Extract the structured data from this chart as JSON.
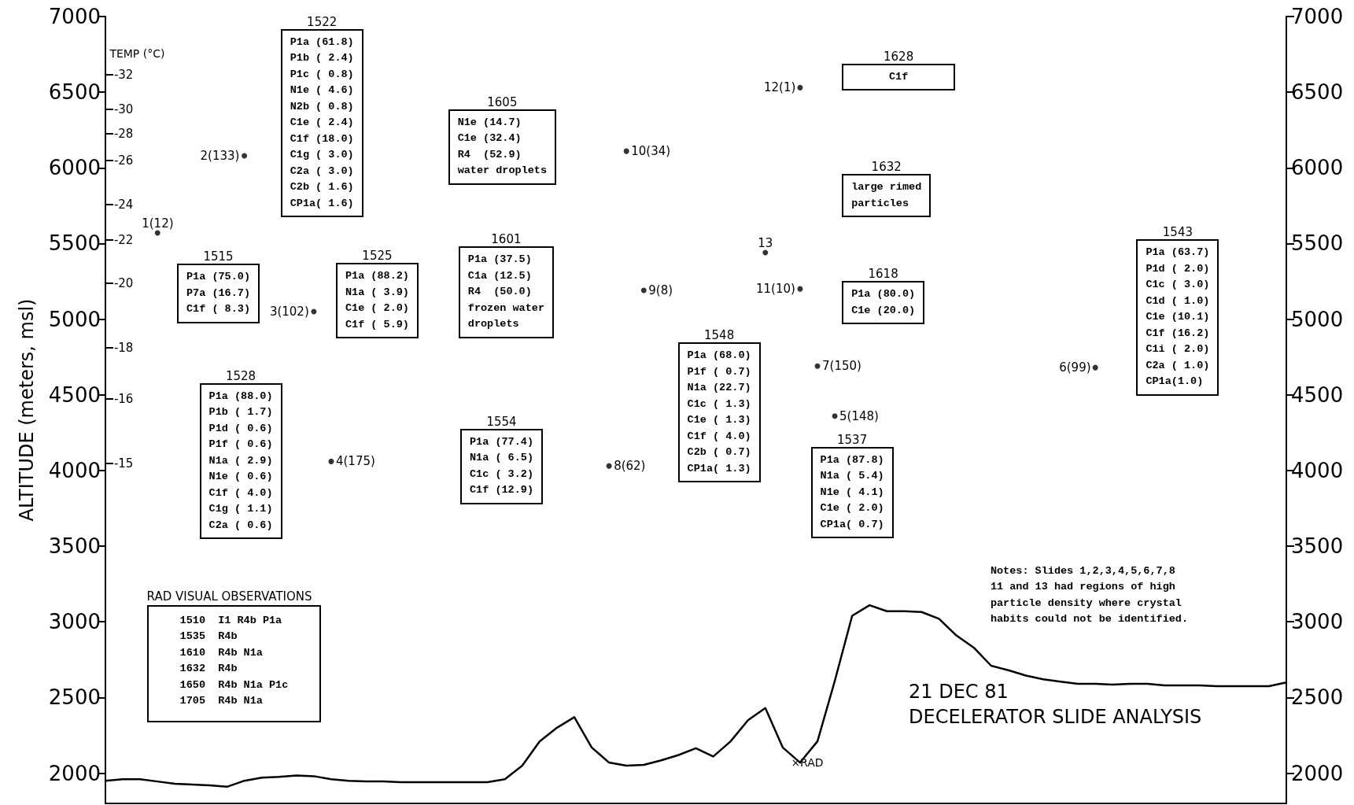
{
  "chart_data": {
    "type": "line",
    "title": "21 DEC 81",
    "subtitle": "DECELERATOR SLIDE ANALYSIS",
    "ylabel": "ALTITUDE (meters, msl)",
    "categories": [
      null,
      null,
      null,
      null,
      null,
      null,
      null,
      null,
      null,
      null,
      null,
      null,
      null,
      null,
      null,
      null,
      null,
      null,
      null,
      null,
      null,
      null,
      null,
      null,
      null,
      null,
      null,
      null,
      null,
      null,
      null,
      null,
      null,
      null,
      null,
      null,
      null,
      null,
      null,
      null,
      null,
      null,
      null,
      null,
      null,
      null,
      null,
      null,
      null,
      null,
      null,
      null,
      null,
      null,
      null,
      null,
      null,
      null,
      null,
      null,
      null,
      null,
      null,
      null,
      null,
      null,
      null,
      null,
      null
    ],
    "ylim": [
      1800,
      7000
    ],
    "yticks": [
      2000,
      2500,
      3000,
      3500,
      4000,
      4500,
      5000,
      5500,
      6000,
      6500,
      7000
    ],
    "y2lim": [
      1800,
      7000
    ],
    "y2ticks": [
      2000,
      2500,
      3000,
      3500,
      4000,
      4500,
      5000,
      5500,
      6000,
      6500,
      7000
    ],
    "tick_labels": "y",
    "grid": false,
    "series": [
      {
        "color": "#000000",
        "marker": "none",
        "values": [
          1950,
          1960,
          1960,
          1945,
          1930,
          1925,
          1920,
          1910,
          1950,
          1970,
          1975,
          1985,
          1980,
          1960,
          1950,
          1945,
          1945,
          1940,
          1940,
          1940,
          1940,
          1940,
          1940,
          1960,
          2050,
          2210,
          2300,
          2370,
          2170,
          2070,
          2050,
          2055,
          2085,
          2120,
          2165,
          2110,
          2210,
          2350,
          2430,
          2170,
          2070,
          2210,
          2610,
          3040,
          3110,
          3070,
          3070,
          3065,
          3020,
          2910,
          2830,
          2710,
          2680,
          2645,
          2620,
          2605,
          2590,
          2590,
          2585,
          2590,
          2590,
          2580,
          2580,
          2580,
          2575,
          2575,
          2575,
          2575,
          2600
        ]
      },
      {
        "type": "scatter",
        "color": "#000000",
        "marker": "circle",
        "values": [
          null,
          null,
          null,
          5570,
          null,
          null,
          null,
          null,
          6080,
          null,
          null,
          null,
          5050,
          4060,
          null,
          null,
          null,
          null,
          null,
          null,
          null,
          null,
          null,
          null,
          null,
          null,
          null,
          null,
          null,
          4030,
          6110,
          5190,
          null,
          null,
          null,
          null,
          null,
          null,
          5440,
          null,
          5200,
          4690,
          4360,
          null,
          null,
          null,
          null,
          null,
          null,
          null,
          null,
          null,
          null,
          null,
          null,
          null,
          null,
          4680,
          null,
          null,
          null,
          null,
          null,
          null,
          null,
          null,
          null,
          null,
          null
        ]
      },
      {
        "type": "scatter",
        "color": "#000000",
        "marker": "circle",
        "values": [
          null,
          null,
          null,
          null,
          null,
          null,
          null,
          null,
          null,
          null,
          null,
          null,
          null,
          null,
          null,
          null,
          null,
          null,
          null,
          null,
          null,
          null,
          null,
          null,
          null,
          null,
          null,
          null,
          null,
          null,
          null,
          null,
          null,
          null,
          null,
          null,
          null,
          null,
          null,
          null,
          6530,
          null,
          null,
          null,
          null,
          null,
          null,
          null,
          null,
          null,
          null,
          null,
          null,
          null,
          null,
          null,
          null,
          null,
          null,
          null,
          null,
          null,
          null,
          null,
          null,
          null,
          null,
          null,
          null
        ]
      }
    ],
    "annotations": [
      "1522\nP1a (61.8)\nP1b ( 2.4)\nP1c ( 0.8)\nN1e ( 4.6)\nN2b ( 0.8)\nC1e ( 2.4)\nC1f (18.0)\nC1g ( 3.0)\nC2a ( 3.0)\nC2b ( 1.6)\nCP1a( 1.6)",
      "1515\nP1a (75.0)\nP7a (16.7)\nC1f ( 8.3)",
      "1525\nP1a (88.2)\nN1a ( 3.9)\nC1e ( 2.0)\nC1f ( 5.9)",
      "1528\nP1a (88.0)\nP1b ( 1.7)\nP1d ( 0.6)\nP1f ( 0.6)\nN1a ( 2.9)\nN1e ( 0.6)\nC1f ( 4.0)\nC1g ( 1.1)\nC2a ( 0.6)",
      "1605\nN1e (14.7)\nC1e (32.4)\nR4  (52.9)\nwater droplets",
      "1601\nP1a (37.5)\nC1a (12.5)\nR4  (50.0)\nfrozen water\ndroplets",
      "1554\nP1a (77.4)\nN1a ( 6.5)\nC1c ( 3.2)\nC1f (12.9)",
      "1548\nP1a (68.0)\nP1f ( 0.7)\nN1a (22.7)\nC1c ( 1.3)\nC1e ( 1.3)\nC1f ( 4.0)\nC2b ( 0.7)\nCP1a( 1.3)",
      "1628\nC1f",
      "1632\nlarge rimed\nparticles",
      "1618\nP1a (80.0)\nC1e (20.0)",
      "1537\nP1a (87.8)\nN1a ( 5.4)\nN1e ( 4.1)\nC1e ( 2.0)\nCP1a( 0.7)",
      "1543\nP1a (63.7)\nP1d ( 2.0)\nC1c ( 3.0)\nC1d ( 1.0)\nC1e (10.1)\nC1f (16.2)\nC1i ( 2.0)\nC2a ( 1.0)\nCP1a(1.0)",
      "RAD VISUAL OBSERVATIONS\n1510  I1 R4b P1a\n1535  R4b\n1610  R4b N1a\n1632  R4b\n1650  R4b N1a P1c\n1705  R4b N1a",
      "Notes: Slides 1,2,3,4,5,6,7,8\n11 and 13 had regions of high\nparticle density where crystal\nhabits could not be identified.",
      "×RAD",
      "TEMP (°C)",
      "-32",
      "-30",
      "-28",
      "-26",
      "-24",
      "-22",
      "-20",
      "-18",
      "-16",
      "-15",
      "1(12)",
      "2(133)",
      "3(102)",
      "4(175)",
      "8(62)",
      "10(34)",
      "9(8)",
      "13",
      "11(10)",
      "7(150)",
      "5(148)",
      "6(99)",
      "12(1)"
    ]
  }
}
